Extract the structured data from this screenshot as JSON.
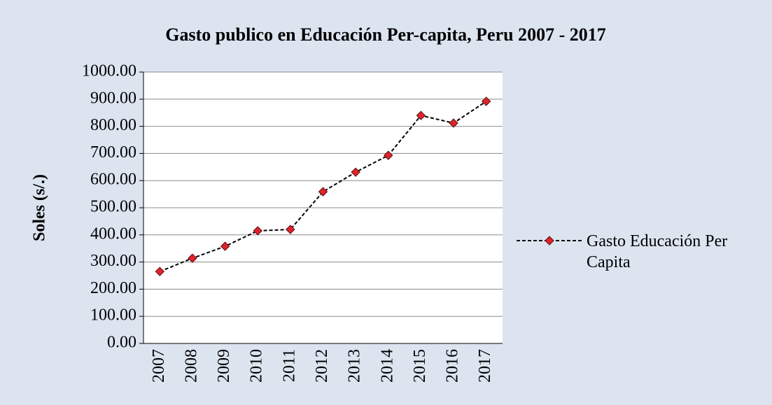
{
  "chart_data": {
    "type": "line",
    "title": "Gasto publico en Educación Per-capita, Peru 2007 - 2017",
    "y_label": "Soles (s/.)",
    "categories": [
      "2007",
      "2008",
      "2009",
      "2010",
      "2011",
      "2012",
      "2013",
      "2014",
      "2015",
      "2016",
      "2017"
    ],
    "series": [
      {
        "name": "Gasto Educación Per Capita",
        "color": "#e0232b",
        "values": [
          265,
          314,
          358,
          415,
          420,
          559,
          631,
          693,
          840,
          812,
          892
        ]
      }
    ],
    "ylim": [
      0,
      1000
    ],
    "yticks": [
      {
        "value": 0,
        "label": "0.00"
      },
      {
        "value": 100,
        "label": "100.00"
      },
      {
        "value": 200,
        "label": "200.00"
      },
      {
        "value": 300,
        "label": "300.00"
      },
      {
        "value": 400,
        "label": "400.00"
      },
      {
        "value": 500,
        "label": "500.00"
      },
      {
        "value": 600,
        "label": "600.00"
      },
      {
        "value": 700,
        "label": "700.00"
      },
      {
        "value": 800,
        "label": "800.00"
      },
      {
        "value": 900,
        "label": "900.00"
      },
      {
        "value": 1000,
        "label": "1000.00"
      }
    ],
    "grid": true,
    "legend": "right"
  }
}
